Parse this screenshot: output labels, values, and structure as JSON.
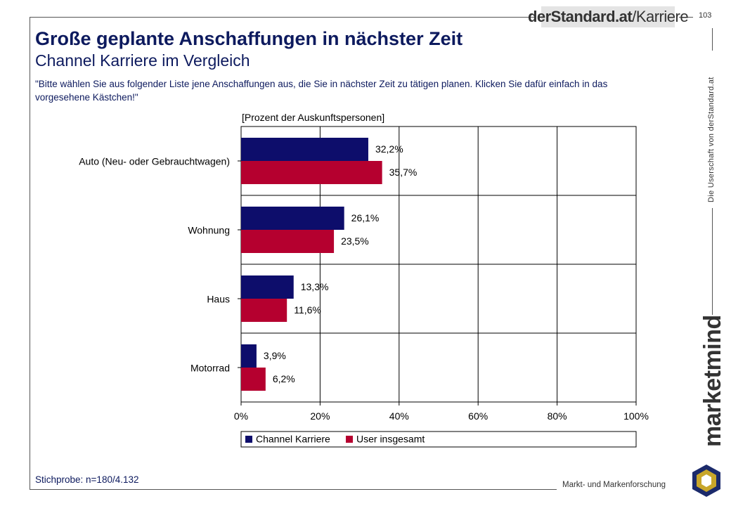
{
  "header": {
    "logo_bold": "derStandard.at",
    "logo_light": "/Karriere",
    "page_number": "103"
  },
  "title": "Große geplante Anschaffungen in nächster Zeit",
  "subtitle": "Channel Karriere im Vergleich",
  "question": "\"Bitte wählen Sie aus folgender Liste jene Anschaffungen aus, die Sie in nächster Zeit zu tätigen planen. Klicken Sie dafür einfach in das vorgesehene Kästchen!\"",
  "side_text": "Die Userschaft von derStandard.at",
  "brand": "marketmind",
  "footer": {
    "sample": "Stichprobe: n=180/4.132",
    "tagline": "Markt- und Markenforschung"
  },
  "colors": {
    "channel": "#0d0d6b",
    "user": "#b5002f",
    "title": "#0d1a5e"
  },
  "chart_data": {
    "type": "bar",
    "orientation": "horizontal",
    "unit_label": "[Prozent der Auskunftspersonen]",
    "categories": [
      "Auto (Neu- oder Gebrauchtwagen)",
      "Wohnung",
      "Haus",
      "Motorrad"
    ],
    "series": [
      {
        "name": "Channel Karriere",
        "values": [
          32.2,
          26.1,
          13.3,
          3.9
        ],
        "labels": [
          "32,2%",
          "26,1%",
          "13,3%",
          "3,9%"
        ]
      },
      {
        "name": "User insgesamt",
        "values": [
          35.7,
          23.5,
          11.6,
          6.2
        ],
        "labels": [
          "35,7%",
          "23,5%",
          "11,6%",
          "6,2%"
        ]
      }
    ],
    "xlim": [
      0,
      100
    ],
    "ticks": [
      0,
      20,
      40,
      60,
      80,
      100
    ],
    "tick_labels": [
      "0%",
      "20%",
      "40%",
      "60%",
      "80%",
      "100%"
    ],
    "grid": true,
    "legend_position": "bottom"
  }
}
